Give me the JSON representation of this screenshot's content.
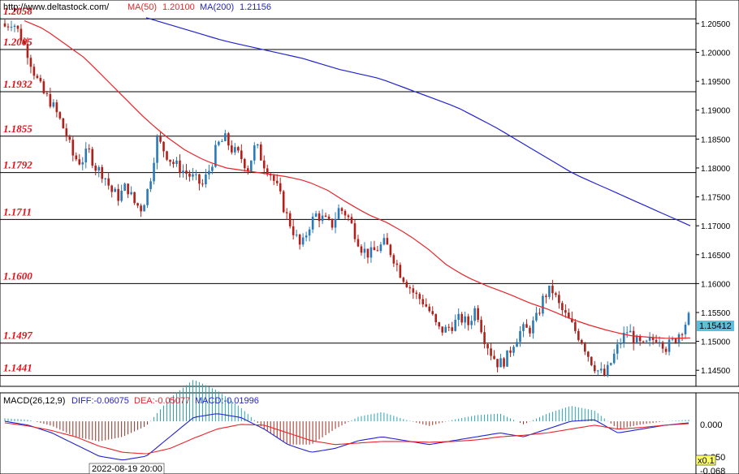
{
  "header": {
    "source": "http://www.deltastock.com/",
    "ma50_label": "MA(50)",
    "ma50_value": "1.20100",
    "ma200_label": "MA(200)",
    "ma200_value": "1.21156"
  },
  "colors": {
    "candle_up": "#2a7ab8",
    "candle_down": "#b0211b",
    "ma50": "#e8252a",
    "ma200": "#2323d0",
    "level_label": "#e2121a",
    "diff": "#2323d0",
    "dea": "#e8252a",
    "hist_pos": "#2aa3b3",
    "hist_neg": "#a02a1d",
    "price_tag": "#5bc0de"
  },
  "price_axis": {
    "ticks": [
      "1.20500",
      "1.20000",
      "1.19500",
      "1.19000",
      "1.18500",
      "1.18000",
      "1.17500",
      "1.17000",
      "1.16500",
      "1.16000",
      "1.15500",
      "1.15000",
      "1.14500"
    ],
    "current_price": "1.15412"
  },
  "macd_panel": {
    "title": "MACD(26,12,9)",
    "diff_label": "DIFF:-0.06075",
    "dea_label": "DEA:-0.05077",
    "macd_label": "MACD:-0.01996",
    "axis_ticks": [
      "0.000",
      "-0.050",
      "-0.068"
    ],
    "scale_badge": "x0.1",
    "time_label": "2022-08-19 20:00"
  },
  "chart_data": {
    "type": "candlestick",
    "ylim": [
      1.1425,
      1.2085
    ],
    "levels": [
      1.2058,
      1.2005,
      1.1932,
      1.1855,
      1.1792,
      1.1711,
      1.16,
      1.1497,
      1.1441
    ],
    "level_labels": [
      "1.2058",
      "1.2005",
      "1.1932",
      "1.1855",
      "1.1792",
      "1.1711",
      "1.1600",
      "1.1497",
      "1.1441"
    ],
    "close_path": [
      1.2045,
      1.2055,
      1.203,
      1.2,
      1.196,
      1.193,
      1.1915,
      1.189,
      1.186,
      1.182,
      1.181,
      1.183,
      1.18,
      1.179,
      1.176,
      1.175,
      1.177,
      1.174,
      1.173,
      1.177,
      1.185,
      1.183,
      1.181,
      1.18,
      1.179,
      1.178,
      1.177,
      1.18,
      1.184,
      1.185,
      1.183,
      1.182,
      1.18,
      1.184,
      1.181,
      1.179,
      1.176,
      1.172,
      1.169,
      1.166,
      1.17,
      1.172,
      1.171,
      1.17,
      1.173,
      1.172,
      1.169,
      1.166,
      1.165,
      1.166,
      1.167,
      1.165,
      1.162,
      1.16,
      1.158,
      1.157,
      1.155,
      1.152,
      1.152,
      1.153,
      1.154,
      1.153,
      1.156,
      1.151,
      1.148,
      1.146,
      1.147,
      1.15,
      1.152,
      1.152,
      1.154,
      1.158,
      1.159,
      1.156,
      1.154,
      1.152,
      1.15,
      1.147,
      1.145,
      1.144,
      1.147,
      1.15,
      1.152,
      1.15,
      1.149,
      1.15,
      1.151,
      1.149,
      1.15,
      1.152,
      1.1541
    ],
    "ma50_path": [
      1.2055,
      1.204,
      1.2015,
      1.199,
      1.1955,
      1.192,
      1.1885,
      1.1855,
      1.183,
      1.1812,
      1.18,
      1.1795,
      1.179,
      1.1785,
      1.1777,
      1.1762,
      1.174,
      1.172,
      1.1705,
      1.1685,
      1.166,
      1.163,
      1.161,
      1.1595,
      1.1582,
      1.1567,
      1.1555,
      1.154,
      1.1528,
      1.1518,
      1.151,
      1.1507,
      1.1505,
      1.1506
    ],
    "ma200_path": [
      1.206,
      1.204,
      1.202,
      1.2005,
      1.199,
      1.197,
      1.1955,
      1.193,
      1.1905,
      1.187,
      1.183,
      1.179,
      1.176,
      1.173,
      1.17
    ],
    "macd_diff_path": [
      0.0,
      -0.005,
      -0.015,
      -0.03,
      -0.045,
      -0.05,
      -0.045,
      -0.02,
      0.005,
      0.01,
      0.005,
      -0.01,
      -0.03,
      -0.04,
      -0.035,
      -0.025,
      -0.02,
      -0.025,
      -0.03,
      -0.025,
      -0.02,
      -0.015,
      -0.02,
      -0.01,
      0.0,
      0.002,
      -0.015,
      -0.01,
      -0.005,
      -0.002
    ],
    "macd_dea_path": [
      -0.002,
      -0.006,
      -0.012,
      -0.02,
      -0.032,
      -0.04,
      -0.042,
      -0.035,
      -0.022,
      -0.01,
      -0.004,
      -0.005,
      -0.015,
      -0.025,
      -0.03,
      -0.028,
      -0.026,
      -0.026,
      -0.027,
      -0.026,
      -0.024,
      -0.02,
      -0.018,
      -0.015,
      -0.01,
      -0.005,
      -0.01,
      -0.008,
      -0.005,
      -0.003
    ]
  }
}
